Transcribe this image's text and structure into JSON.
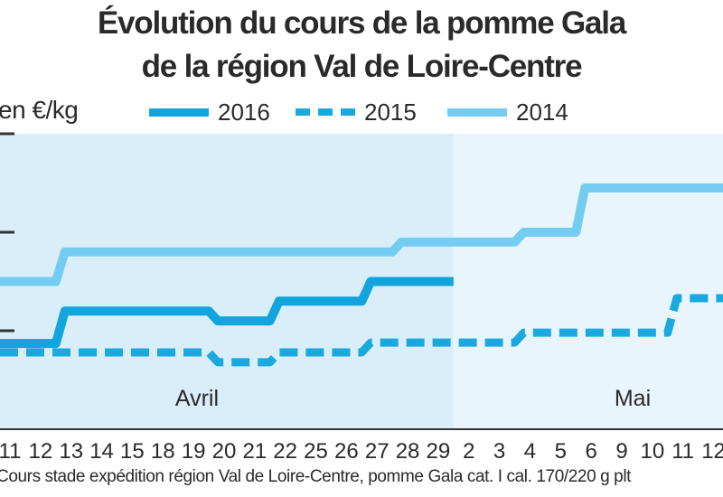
{
  "title_line1": "Évolution du cours de la pomme Gala",
  "title_line2": "de la région Val de Loire-Centre",
  "footnote": "Cours stade expédition région Val de Loire-Centre, pomme Gala cat. I cal. 170/220 g plt",
  "colors": {
    "series_2016": "#12a4dc",
    "series_2015": "#19a9df",
    "series_2014": "#74cdf1",
    "band_avril": "#daeefa",
    "band_mai": "#e9f5fc",
    "axis": "#333333"
  },
  "chart_data": {
    "type": "line",
    "title": "Évolution du cours de la pomme Gala de la région Val de Loire-Centre",
    "ylabel": "en €/kg",
    "categories": [
      "11",
      "12",
      "13",
      "14",
      "15",
      "18",
      "19",
      "20",
      "21",
      "22",
      "25",
      "26",
      "27",
      "28",
      "29",
      "2",
      "3",
      "4",
      "5",
      "6",
      "9",
      "10",
      "11",
      "12"
    ],
    "periods": [
      {
        "label": "Avril",
        "from": 0,
        "to": 14
      },
      {
        "label": "Mai",
        "from": 15,
        "to": 23
      }
    ],
    "grid": false,
    "legend_position": "top",
    "y_relative_scale": [
      0,
      3
    ],
    "series": [
      {
        "name": "2016",
        "style": "solid-thick",
        "values": [
          0.87,
          0.87,
          1.2,
          1.2,
          1.2,
          1.2,
          1.2,
          1.1,
          1.1,
          1.3,
          1.3,
          1.3,
          1.5,
          1.5,
          1.5,
          null,
          null,
          null,
          null,
          null,
          null,
          null,
          null,
          null
        ]
      },
      {
        "name": "2015",
        "style": "dashed",
        "values": [
          0.78,
          0.78,
          0.78,
          0.78,
          0.78,
          0.78,
          0.78,
          0.68,
          0.68,
          0.78,
          0.78,
          0.78,
          0.88,
          0.88,
          0.88,
          0.88,
          0.88,
          0.98,
          0.98,
          0.98,
          0.98,
          0.98,
          1.33,
          1.33
        ]
      },
      {
        "name": "2014",
        "style": "solid-light",
        "values": [
          1.5,
          1.5,
          1.8,
          1.8,
          1.8,
          1.8,
          1.8,
          1.8,
          1.8,
          1.8,
          1.8,
          1.8,
          1.8,
          1.9,
          1.9,
          1.9,
          1.9,
          2.0,
          2.0,
          2.45,
          2.45,
          2.45,
          2.45,
          2.45
        ]
      }
    ]
  }
}
